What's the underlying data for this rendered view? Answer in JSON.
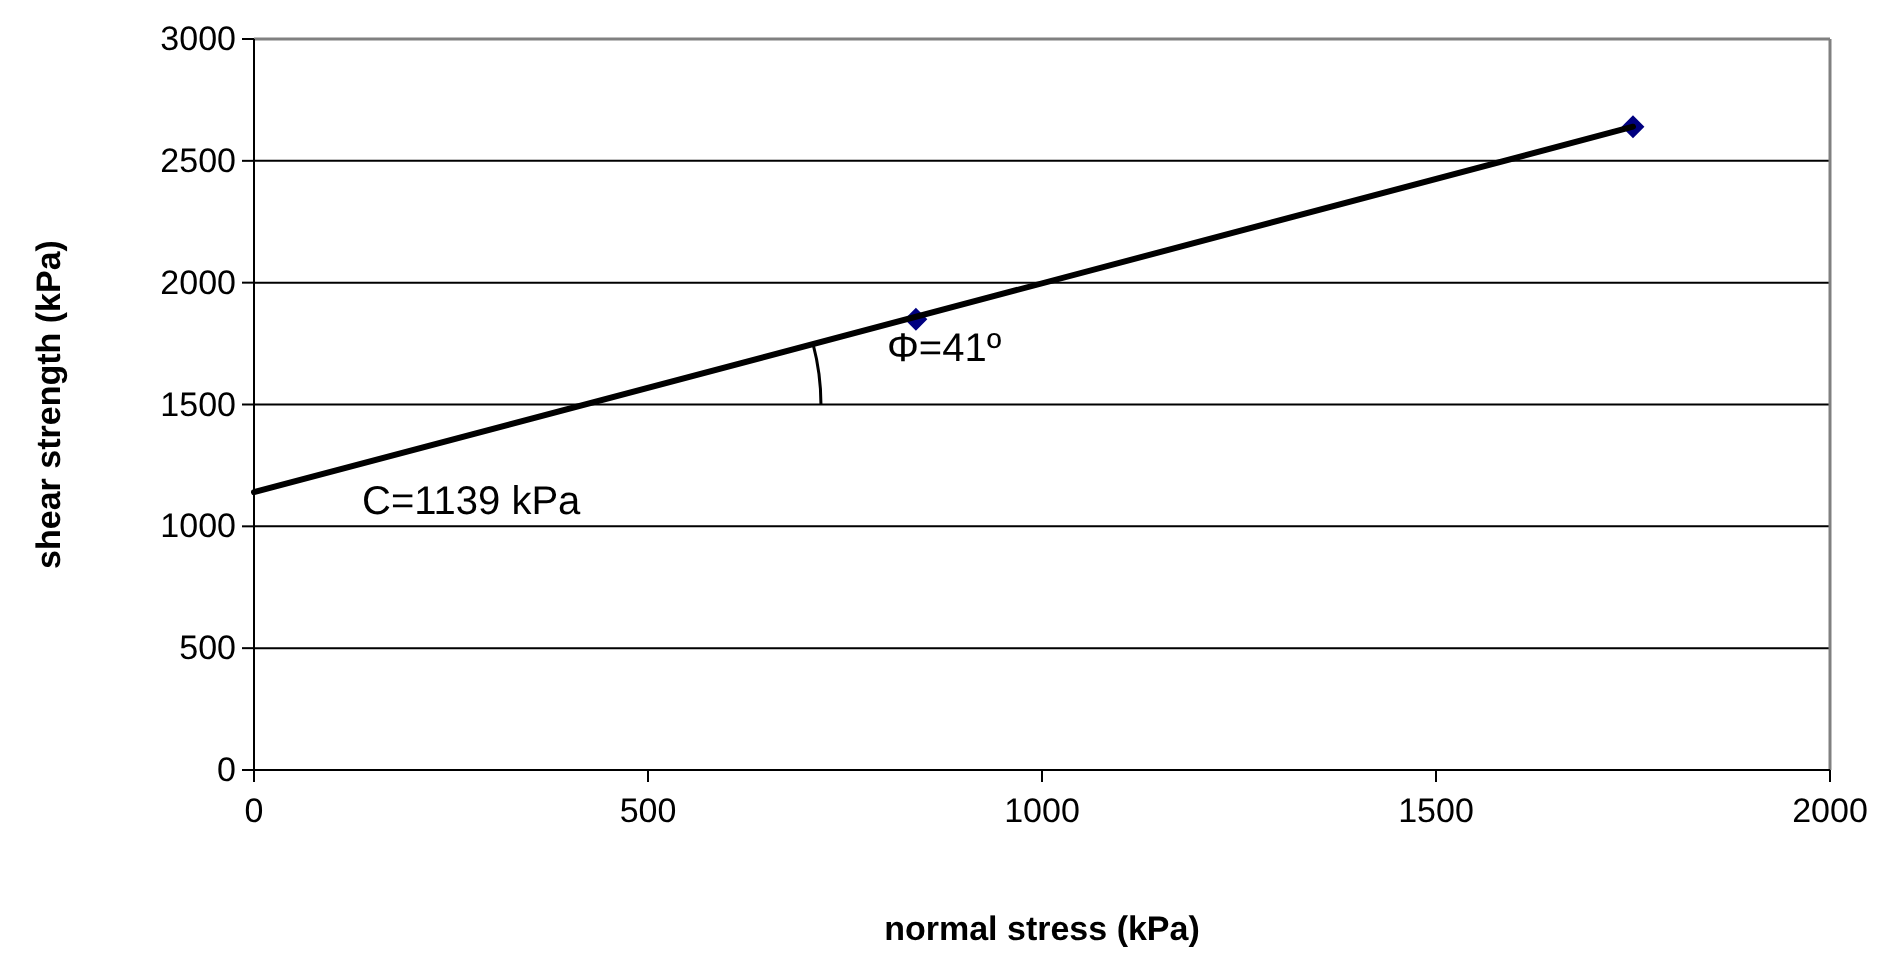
{
  "chart_data": {
    "type": "scatter",
    "xlabel": "normal stress (kPa)",
    "ylabel": "shear strength (kPa)",
    "xlim": [
      0,
      2000
    ],
    "xticks": [
      0,
      500,
      1000,
      1500,
      2000
    ],
    "ylim": [
      0,
      3000
    ],
    "yticks": [
      0,
      500,
      1000,
      1500,
      2000,
      2500,
      3000
    ],
    "grid": "y",
    "marker": "diamond",
    "series": [
      {
        "color": "#000080",
        "x": [
          840,
          1750
        ],
        "values": [
          1850,
          2640
        ]
      },
      {
        "type": "line",
        "color": "#000000",
        "x": [
          0,
          1750
        ],
        "values": [
          1140,
          2640
        ],
        "line_style": "solid",
        "marker": "none"
      }
    ],
    "annotations": [
      "C=1139 kPa",
      "Φ=41º"
    ]
  }
}
